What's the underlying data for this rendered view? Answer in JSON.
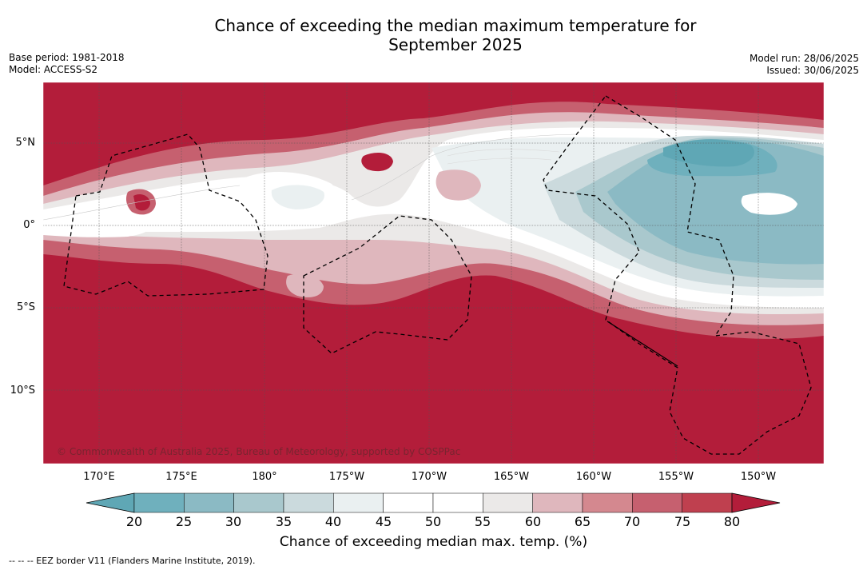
{
  "title_line1": "Chance of exceeding the median maximum temperature for",
  "title_line2": "September 2025",
  "base_period": "Base period: 1981-2018",
  "model": "Model: ACCESS-S2",
  "model_run": "Model run: 28/06/2025",
  "issued": "Issued: 30/06/2025",
  "lat_labels": [
    "5°N",
    "0°",
    "5°S",
    "10°S"
  ],
  "lon_labels": [
    "170°E",
    "175°E",
    "180°",
    "175°W",
    "170°W",
    "165°W",
    "160°W",
    "155°W",
    "150°W"
  ],
  "copyright": "© Commonwealth of Australia 2025, Bureau of Meteorology, supported by COSPPac",
  "colorbar": {
    "ticks": [
      "20",
      "25",
      "30",
      "35",
      "40",
      "45",
      "50",
      "55",
      "60",
      "65",
      "70",
      "75",
      "80"
    ],
    "colors": [
      "#5fa7b5",
      "#6fb0bd",
      "#8bbac4",
      "#a9c8cd",
      "#cbdadd",
      "#eaf0f1",
      "#ffffff",
      "#ffffff",
      "#ebe9e8",
      "#dfb7bd",
      "#d4888f",
      "#c6606f",
      "#bf404f",
      "#b31d3a"
    ],
    "label": "Chance of exceeding median max. temp. (%)"
  },
  "footnote": "--  --  -- EEZ border V11 (Flanders Marine Institute, 2019)."
}
